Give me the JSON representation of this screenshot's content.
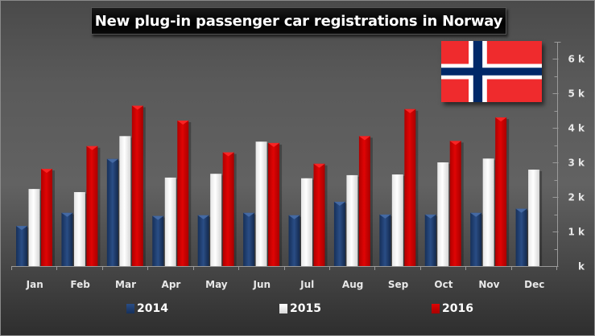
{
  "chart_data": {
    "type": "bar",
    "title": "New plug-in passenger car registrations in Norway",
    "xlabel": "",
    "ylabel": "",
    "categories": [
      "Jan",
      "Feb",
      "Mar",
      "Apr",
      "May",
      "Jun",
      "Jul",
      "Aug",
      "Sep",
      "Oct",
      "Nov",
      "Dec"
    ],
    "series": [
      {
        "name": "2014",
        "color": "#1f3d6e",
        "values": [
          1.16,
          1.54,
          3.1,
          1.45,
          1.47,
          1.54,
          1.47,
          1.86,
          1.49,
          1.49,
          1.54,
          1.66
        ]
      },
      {
        "name": "2015",
        "color": "#f4f4f4",
        "values": [
          2.23,
          2.14,
          3.76,
          2.56,
          2.67,
          3.6,
          2.54,
          2.63,
          2.65,
          3.0,
          3.11,
          2.79
        ]
      },
      {
        "name": "2016",
        "color": "#d40000",
        "values": [
          2.81,
          3.47,
          4.64,
          4.21,
          3.29,
          3.56,
          2.96,
          3.76,
          4.54,
          3.62,
          4.3,
          null
        ]
      }
    ],
    "value_unit": "thousands",
    "ylim": [
      0,
      6.5
    ],
    "y_ticks": [
      0,
      1,
      2,
      3,
      4,
      5,
      6
    ],
    "y_tick_labels": [
      "k",
      "1 k",
      "2 k",
      "3 k",
      "4 k",
      "5 k",
      "6 k"
    ],
    "y_axis_position": "right",
    "grid": false,
    "legend_position": "bottom"
  },
  "flag": {
    "red": "#ef2b2d",
    "white": "#ffffff",
    "blue": "#002868"
  }
}
